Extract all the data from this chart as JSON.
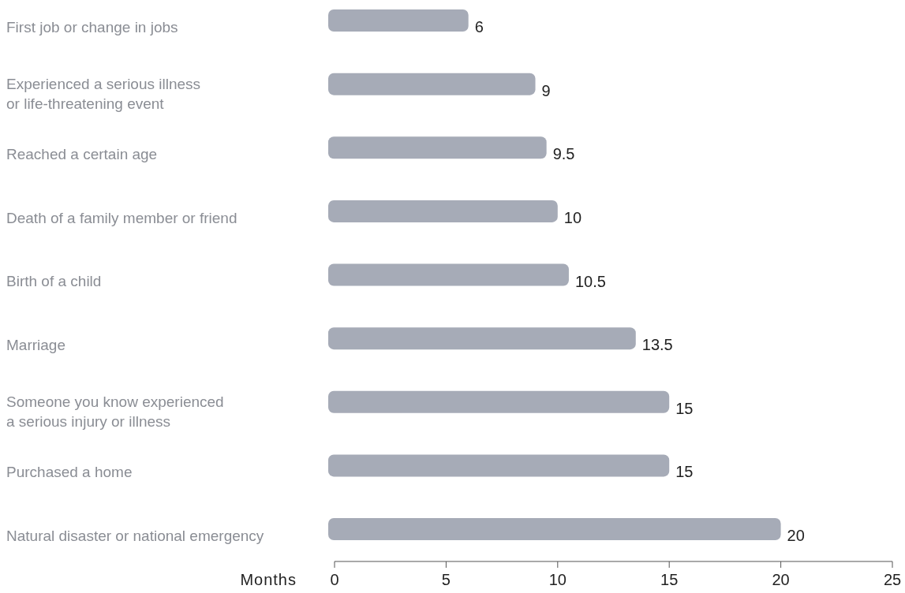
{
  "chart_data": {
    "type": "bar",
    "orientation": "horizontal",
    "xlabel": "Months",
    "categories": [
      "First job or change in jobs",
      "Experienced a serious illness\nor life-threatening event",
      "Reached a certain age",
      "Death of a family member or friend",
      "Birth of a child",
      "Marriage",
      "Someone you know experienced\na serious injury or illness",
      "Purchased a home",
      "Natural disaster or national emergency"
    ],
    "values": [
      6,
      9,
      9.5,
      10,
      10.5,
      13.5,
      15,
      15,
      20
    ],
    "color": "#a6abb7",
    "xlim": [
      0,
      25
    ],
    "xticks": [
      0,
      5,
      10,
      15,
      20,
      25
    ],
    "data_labels": true
  }
}
